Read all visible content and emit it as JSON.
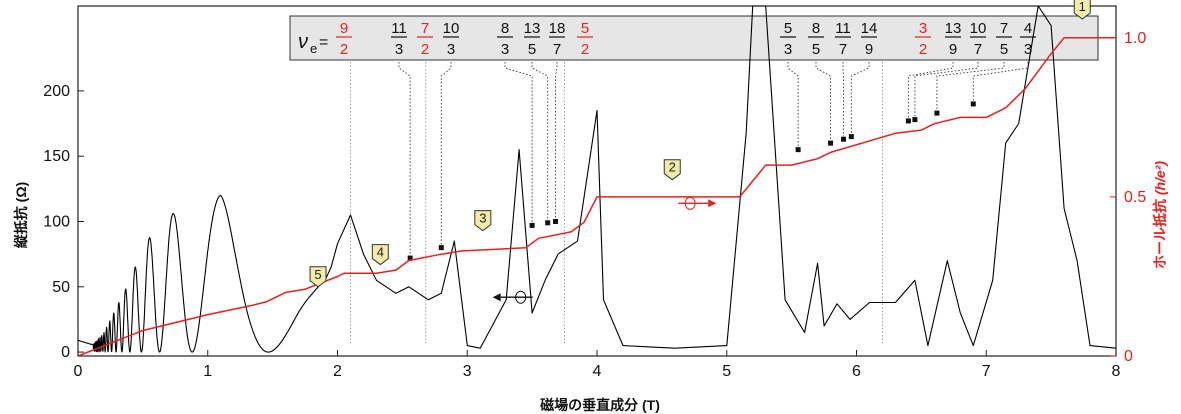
{
  "chart_data": {
    "type": "line",
    "xlabel": "磁場の垂直成分 (T)",
    "ylabel_left": "縦抵抗 (Ω)",
    "ylabel_right_main": "ホール抵抗 ",
    "ylabel_right_unit": "(h/e²)",
    "xlim": [
      0,
      8
    ],
    "ylim_left": [
      -3,
      265
    ],
    "ylim_right": [
      0,
      1.1
    ],
    "x_ticks": [
      "0",
      "1",
      "2",
      "3",
      "4",
      "5",
      "6",
      "7",
      "8"
    ],
    "y_ticks_left": [
      "0",
      "50",
      "100",
      "150",
      "200"
    ],
    "y_ticks_right": [
      "0",
      "0.5",
      "1.0"
    ],
    "colors": {
      "rxx": "#000000",
      "rxy": "#e8201e",
      "fraction_red": "#e8201e",
      "marker_fill": "#f2eca8",
      "legend_bg": "#e6e6e6"
    },
    "series": [
      {
        "name": "縦抵抗",
        "axis": "left",
        "note": "longitudinal resistance, oscillatory trace",
        "x": [
          0,
          0.05,
          0.1,
          0.2,
          0.3,
          0.4,
          0.5,
          0.6,
          0.7,
          0.8,
          0.9,
          1.0,
          1.1,
          1.2,
          1.3,
          1.45,
          1.55,
          1.7,
          1.8,
          1.9,
          2.0,
          2.1,
          2.2,
          2.3,
          2.45,
          2.55,
          2.7,
          2.8,
          2.9,
          3.0,
          3.1,
          3.3,
          3.4,
          3.5,
          3.6,
          3.7,
          3.85,
          4.0,
          4.05,
          4.2,
          4.6,
          5.0,
          5.15,
          5.2,
          5.3,
          5.45,
          5.6,
          5.7,
          5.75,
          5.85,
          5.95,
          6.1,
          6.3,
          6.45,
          6.55,
          6.7,
          6.8,
          6.9,
          7.05,
          7.15,
          7.25,
          7.4,
          7.5,
          7.6,
          7.7,
          7.8,
          8.0
        ],
        "y": [
          9,
          10,
          4,
          15,
          35,
          55,
          80,
          95,
          105,
          108,
          112,
          118,
          120,
          108,
          100,
          98,
          90,
          84,
          75,
          70,
          83,
          105,
          75,
          55,
          45,
          50,
          40,
          45,
          85,
          5,
          3,
          40,
          155,
          30,
          55,
          75,
          85,
          185,
          40,
          5,
          3,
          5,
          168,
          280,
          270,
          40,
          15,
          68,
          20,
          37,
          25,
          38,
          38,
          55,
          5,
          70,
          30,
          5,
          55,
          160,
          175,
          300,
          250,
          110,
          70,
          5,
          3
        ]
      },
      {
        "name": "ホール抵抗",
        "axis": "right",
        "note": "Hall resistance plateaus",
        "x": [
          0,
          0.5,
          1.0,
          1.35,
          1.45,
          1.6,
          1.75,
          2.0,
          2.05,
          2.3,
          2.45,
          2.55,
          2.8,
          2.95,
          3.45,
          3.55,
          3.8,
          3.9,
          4.0,
          4.1,
          5.1,
          5.2,
          5.3,
          5.5,
          5.7,
          5.8,
          6.3,
          6.5,
          6.6,
          6.8,
          7.0,
          7.15,
          7.3,
          7.5,
          7.6,
          7.7,
          8.0
        ],
        "y": [
          0,
          0.08,
          0.13,
          0.16,
          0.17,
          0.2,
          0.21,
          0.25,
          0.26,
          0.26,
          0.27,
          0.3,
          0.32,
          0.33,
          0.34,
          0.37,
          0.39,
          0.42,
          0.5,
          0.5,
          0.5,
          0.55,
          0.6,
          0.6,
          0.62,
          0.64,
          0.7,
          0.71,
          0.73,
          0.75,
          0.75,
          0.78,
          0.84,
          0.95,
          1.0,
          1.0,
          1.0
        ]
      }
    ],
    "fractions": [
      {
        "label": "9/2",
        "num": "9",
        "den": "2",
        "red": true,
        "x_T": 2.1,
        "y_ohm": null
      },
      {
        "label": "11/3",
        "num": "11",
        "den": "3",
        "red": false,
        "x_T": 2.56,
        "y_ohm": 72
      },
      {
        "label": "7/2",
        "num": "7",
        "den": "2",
        "red": true,
        "x_T": 2.68,
        "y_ohm": null
      },
      {
        "label": "10/3",
        "num": "10",
        "den": "3",
        "red": false,
        "x_T": 2.8,
        "y_ohm": 80
      },
      {
        "label": "8/3",
        "num": "8",
        "den": "3",
        "red": false,
        "x_T": 3.5,
        "y_ohm": 97
      },
      {
        "label": "13/5",
        "num": "13",
        "den": "5",
        "red": false,
        "x_T": 3.62,
        "y_ohm": 99
      },
      {
        "label": "18/7",
        "num": "18",
        "den": "7",
        "red": false,
        "x_T": 3.68,
        "y_ohm": 100
      },
      {
        "label": "5/2",
        "num": "5",
        "den": "2",
        "red": true,
        "x_T": 3.75,
        "y_ohm": null
      },
      {
        "label": "5/3",
        "num": "5",
        "den": "3",
        "red": false,
        "x_T": 5.55,
        "y_ohm": 155
      },
      {
        "label": "8/5",
        "num": "8",
        "den": "5",
        "red": false,
        "x_T": 5.8,
        "y_ohm": 160
      },
      {
        "label": "11/7",
        "num": "11",
        "den": "7",
        "red": false,
        "x_T": 5.9,
        "y_ohm": 163
      },
      {
        "label": "14/9",
        "num": "14",
        "den": "9",
        "red": false,
        "x_T": 5.96,
        "y_ohm": 165
      },
      {
        "label": "3/2",
        "num": "3",
        "den": "2",
        "red": true,
        "x_T": 6.2,
        "y_ohm": null
      },
      {
        "label": "13/9",
        "num": "13",
        "den": "9",
        "red": false,
        "x_T": 6.4,
        "y_ohm": 177
      },
      {
        "label": "10/7",
        "num": "10",
        "den": "7",
        "red": false,
        "x_T": 6.45,
        "y_ohm": 178
      },
      {
        "label": "7/5",
        "num": "7",
        "den": "5",
        "red": false,
        "x_T": 6.62,
        "y_ohm": 183
      },
      {
        "label": "4/3",
        "num": "4",
        "den": "3",
        "red": false,
        "x_T": 6.9,
        "y_ohm": 190
      }
    ],
    "legend_prefix_nu": "ν",
    "legend_prefix_sub": "e",
    "legend_prefix_eq": " =",
    "plateau_markers": [
      {
        "label": "1",
        "x_T": 7.74,
        "y_ohm": 255
      },
      {
        "label": "2",
        "x_T": 4.58,
        "y_ohm": 132
      },
      {
        "label": "3",
        "x_T": 3.12,
        "y_ohm": 93
      },
      {
        "label": "4",
        "x_T": 2.33,
        "y_ohm": 67
      },
      {
        "label": "5",
        "x_T": 1.85,
        "y_ohm": 50
      }
    ]
  }
}
